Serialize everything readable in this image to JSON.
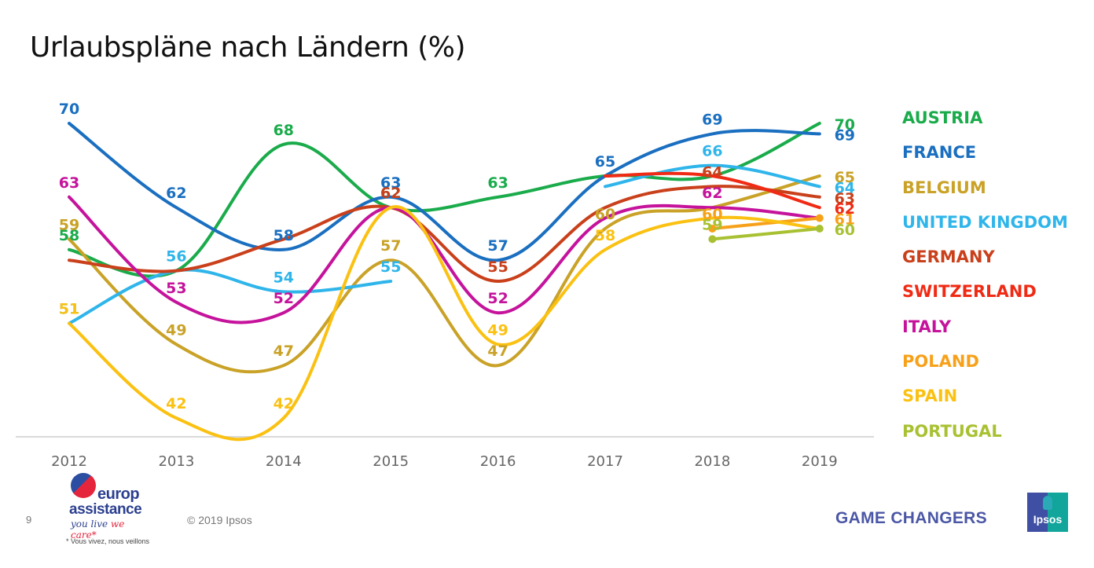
{
  "title": "Urlaubspläne nach Ländern (%)",
  "chart_data": {
    "type": "line",
    "title": "Urlaubspläne nach Ländern (%)",
    "xlabel": "",
    "ylabel": "",
    "x": [
      "2012",
      "2013",
      "2014",
      "2015",
      "2016",
      "2017",
      "2018",
      "2019"
    ],
    "grid": false,
    "legend_position": "right",
    "series": [
      {
        "name": "AUSTRIA",
        "color": "#1aab4b",
        "values": [
          58,
          56,
          68,
          62,
          63,
          65,
          65,
          70
        ],
        "labels": [
          "58",
          null,
          "68",
          "62",
          "63",
          null,
          null,
          "70"
        ]
      },
      {
        "name": "FRANCE",
        "color": "#1a6fc0",
        "values": [
          70,
          62,
          58,
          63,
          57,
          65,
          69,
          69
        ],
        "labels": [
          "70",
          "62",
          "58",
          "63",
          "57",
          "65",
          "69",
          "69"
        ]
      },
      {
        "name": "BELGIUM",
        "color": "#c9a227",
        "values": [
          59,
          49,
          47,
          57,
          47,
          60,
          62,
          65
        ],
        "labels": [
          "59",
          "49",
          "47",
          "57",
          "47",
          "60",
          null,
          "65"
        ]
      },
      {
        "name": "UNITED KINGDOM",
        "color": "#2fb5ea",
        "values": [
          51,
          56,
          54,
          55,
          null,
          64,
          66,
          64
        ],
        "labels": [
          "51",
          "56",
          "54",
          "55",
          null,
          null,
          "66",
          "64"
        ]
      },
      {
        "name": "GERMANY",
        "color": "#c9401b",
        "values": [
          57,
          56,
          59,
          62,
          55,
          62,
          64,
          63
        ],
        "labels": [
          null,
          null,
          null,
          "62",
          "55",
          null,
          "64",
          "63"
        ]
      },
      {
        "name": "SWITZERLAND",
        "color": "#f02a14",
        "values": [
          null,
          null,
          null,
          null,
          null,
          65,
          65,
          62
        ],
        "labels": [
          null,
          null,
          null,
          null,
          null,
          null,
          null,
          "62"
        ]
      },
      {
        "name": "ITALY",
        "color": "#c5139c",
        "values": [
          63,
          53,
          52,
          62,
          52,
          61,
          62,
          61
        ],
        "labels": [
          "63",
          "53",
          "52",
          null,
          "52",
          null,
          "62",
          null
        ]
      },
      {
        "name": "POLAND",
        "color": "#f7a11a",
        "values": [
          null,
          null,
          null,
          null,
          null,
          null,
          60,
          61
        ],
        "labels": [
          null,
          null,
          null,
          null,
          null,
          null,
          "60",
          "61"
        ]
      },
      {
        "name": "SPAIN",
        "color": "#fbc112",
        "values": [
          51,
          42,
          42,
          62,
          49,
          58,
          61,
          60
        ],
        "labels": [
          "51",
          "42",
          "42",
          null,
          "49",
          "58",
          null,
          null
        ]
      },
      {
        "name": "PORTUGAL",
        "color": "#a8c132",
        "values": [
          null,
          null,
          null,
          null,
          null,
          null,
          59,
          60
        ],
        "labels": [
          null,
          null,
          null,
          null,
          null,
          null,
          "59",
          "60"
        ]
      }
    ]
  },
  "legend": [
    "AUSTRIA",
    "FRANCE",
    "BELGIUM",
    "UNITED KINGDOM",
    "GERMANY",
    "SWITZERLAND",
    "ITALY",
    "POLAND",
    "SPAIN",
    "PORTUGAL"
  ],
  "footer": {
    "page_number": "9",
    "copyright": "© 2019 Ipsos",
    "brand_left": {
      "line1": "europ",
      "line2": "assistance",
      "tagline_a": "you live ",
      "tagline_b": "we care*",
      "note": "* Vous vivez, nous veillons"
    },
    "brand_right": "GAME CHANGERS",
    "ipsos": "Ipsos"
  }
}
